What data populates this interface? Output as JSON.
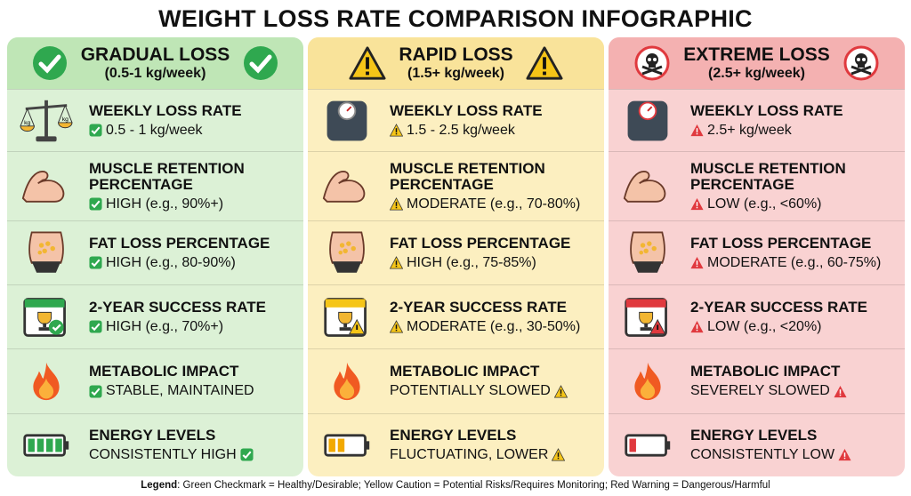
{
  "title": "WEIGHT LOSS RATE COMPARISON INFOGRAPHIC",
  "colors": {
    "green": "#2fa84f",
    "yellow": "#f5c518",
    "red": "#e0393e"
  },
  "columns": [
    {
      "id": "gradual",
      "title": "GRADUAL LOSS",
      "subtitle": "(0.5-1 kg/week)",
      "badge": "check-circle-icon",
      "status": "check",
      "bg": "#dcf1d6",
      "hdr": "#bfe6b6",
      "rows": [
        {
          "icon": "scale-icon",
          "label": "WEEKLY LOSS RATE",
          "value": "0.5 - 1 kg/week",
          "marker": "prefix"
        },
        {
          "icon": "muscle-arm-icon",
          "label": "MUSCLE RETENTION PERCENTAGE",
          "value": "HIGH (e.g., 90%+)",
          "marker": "prefix"
        },
        {
          "icon": "belly-fat-icon",
          "label": "FAT LOSS PERCENTAGE",
          "value": "HIGH (e.g., 80-90%)",
          "marker": "prefix"
        },
        {
          "icon": "calendar-trophy-icon",
          "label": "2-YEAR SUCCESS RATE",
          "value": "HIGH (e.g., 70%+)",
          "marker": "prefix"
        },
        {
          "icon": "flame-icon",
          "label": "METABOLIC IMPACT",
          "value": "STABLE, MAINTAINED",
          "marker": "prefix"
        },
        {
          "icon": "battery-full-icon",
          "label": "ENERGY LEVELS",
          "value": "CONSISTENTLY HIGH",
          "marker": "suffix",
          "battery": 1.0
        }
      ]
    },
    {
      "id": "rapid",
      "title": "RAPID LOSS",
      "subtitle": "(1.5+ kg/week)",
      "badge": "warning-triangle-icon",
      "status": "warn",
      "bg": "#fcefc0",
      "hdr": "#f9e39a",
      "rows": [
        {
          "icon": "bathroom-scale-icon",
          "label": "WEEKLY LOSS RATE",
          "value": "1.5 - 2.5 kg/week",
          "marker": "prefix"
        },
        {
          "icon": "muscle-arm-icon",
          "label": "MUSCLE RETENTION PERCENTAGE",
          "value": "MODERATE (e.g., 70-80%)",
          "marker": "prefix"
        },
        {
          "icon": "belly-fat-icon",
          "label": "FAT LOSS PERCENTAGE",
          "value": "HIGH (e.g., 75-85%)",
          "marker": "prefix"
        },
        {
          "icon": "calendar-trophy-icon",
          "label": "2-YEAR SUCCESS RATE",
          "value": "MODERATE (e.g., 30-50%)",
          "marker": "prefix"
        },
        {
          "icon": "flame-icon",
          "label": "METABOLIC IMPACT",
          "value": "POTENTIALLY SLOWED",
          "marker": "suffix"
        },
        {
          "icon": "battery-half-icon",
          "label": "ENERGY LEVELS",
          "value": "FLUCTUATING, LOWER",
          "marker": "suffix",
          "battery": 0.4
        }
      ]
    },
    {
      "id": "extreme",
      "title": "EXTREME LOSS",
      "subtitle": "(2.5+ kg/week)",
      "badge": "skull-crossbones-icon",
      "status": "danger",
      "bg": "#f9d2d2",
      "hdr": "#f4b1b1",
      "rows": [
        {
          "icon": "bathroom-scale-icon",
          "label": "WEEKLY LOSS RATE",
          "value": "2.5+ kg/week",
          "marker": "prefix"
        },
        {
          "icon": "muscle-arm-icon",
          "label": "MUSCLE RETENTION PERCENTAGE",
          "value": "LOW (e.g., <60%)",
          "marker": "prefix"
        },
        {
          "icon": "belly-fat-icon",
          "label": "FAT LOSS PERCENTAGE",
          "value": "MODERATE (e.g., 60-75%)",
          "marker": "prefix"
        },
        {
          "icon": "calendar-trophy-icon",
          "label": "2-YEAR SUCCESS RATE",
          "value": "LOW (e.g., <20%)",
          "marker": "prefix"
        },
        {
          "icon": "flame-icon",
          "label": "METABOLIC IMPACT",
          "value": "SEVERELY SLOWED",
          "marker": "suffix"
        },
        {
          "icon": "battery-low-icon",
          "label": "ENERGY LEVELS",
          "value": "CONSISTENTLY LOW",
          "marker": "suffix",
          "battery": 0.2
        }
      ]
    }
  ],
  "legend": {
    "label": "Legend",
    "text": ": Green Checkmark = Healthy/Desirable; Yellow Caution = Potential Risks/Requires Monitoring; Red Warning = Dangerous/Harmful"
  }
}
